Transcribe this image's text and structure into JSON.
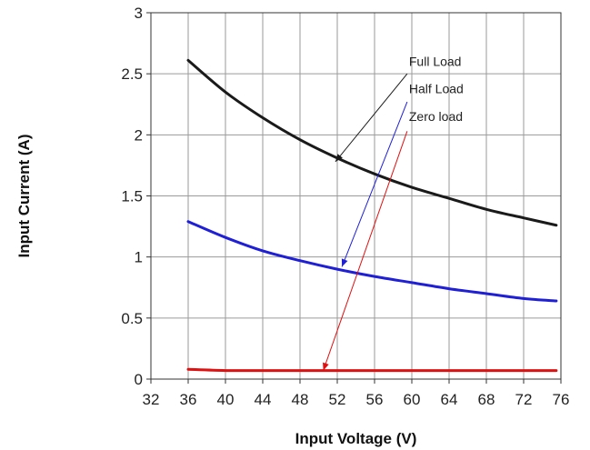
{
  "chart_data": {
    "type": "line",
    "title": "",
    "xlabel": "Input Voltage (V)",
    "ylabel": "Input Current (A)",
    "xlim": [
      32,
      76
    ],
    "ylim": [
      0,
      3
    ],
    "grid": true,
    "x_ticks": [
      "32",
      "36",
      "40",
      "44",
      "48",
      "52",
      "56",
      "60",
      "64",
      "68",
      "72",
      "76"
    ],
    "y_ticks": [
      "0",
      "0.5",
      "1",
      "1.5",
      "2",
      "2.5",
      "3"
    ],
    "series": [
      {
        "name": "Full Load",
        "color": "#1a1a1a",
        "x": [
          36,
          40,
          44,
          48,
          52,
          56,
          60,
          64,
          68,
          72,
          75.5
        ],
        "y": [
          2.61,
          2.35,
          2.14,
          1.96,
          1.81,
          1.68,
          1.57,
          1.48,
          1.39,
          1.32,
          1.26
        ]
      },
      {
        "name": "Half Load",
        "color": "#1f1fd6",
        "x": [
          36,
          40,
          44,
          48,
          52,
          56,
          60,
          64,
          68,
          72,
          75.5
        ],
        "y": [
          1.29,
          1.16,
          1.05,
          0.97,
          0.9,
          0.84,
          0.79,
          0.74,
          0.7,
          0.66,
          0.64
        ]
      },
      {
        "name": "Zero load",
        "color": "#e01010",
        "x": [
          36,
          40,
          44,
          48,
          52,
          56,
          60,
          64,
          68,
          72,
          75.5
        ],
        "y": [
          0.08,
          0.07,
          0.07,
          0.07,
          0.07,
          0.07,
          0.07,
          0.07,
          0.07,
          0.07,
          0.07
        ]
      }
    ],
    "annotations": [
      {
        "text": "Full Load",
        "series": 0,
        "label_x": 59.5,
        "label_y": 2.6,
        "arrow_from": [
          59.5,
          2.5
        ],
        "arrow_to": [
          51.8,
          1.78
        ]
      },
      {
        "text": "Half Load",
        "series": 1,
        "label_x": 59.5,
        "label_y": 2.38,
        "arrow_from": [
          59.5,
          2.27
        ],
        "arrow_to": [
          52.5,
          0.92
        ]
      },
      {
        "text": "Zero load",
        "series": 2,
        "label_x": 59.5,
        "label_y": 2.15,
        "arrow_from": [
          59.5,
          2.03
        ],
        "arrow_to": [
          50.5,
          0.07
        ]
      }
    ]
  }
}
